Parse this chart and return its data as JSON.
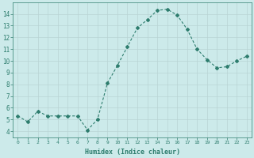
{
  "x": [
    0,
    1,
    2,
    3,
    4,
    5,
    6,
    7,
    8,
    9,
    10,
    11,
    12,
    13,
    14,
    15,
    16,
    17,
    18,
    19,
    20,
    21,
    22,
    23
  ],
  "y": [
    5.3,
    4.8,
    5.7,
    5.3,
    5.3,
    5.3,
    5.3,
    4.1,
    5.0,
    8.1,
    9.6,
    11.2,
    12.8,
    13.5,
    14.3,
    14.4,
    13.9,
    12.7,
    11.0,
    10.1,
    9.4,
    9.5,
    10.0,
    10.4
  ],
  "xlabel": "Humidex (Indice chaleur)",
  "ylim": [
    3.5,
    15.0
  ],
  "xlim": [
    -0.5,
    23.5
  ],
  "yticks": [
    4,
    5,
    6,
    7,
    8,
    9,
    10,
    11,
    12,
    13,
    14
  ],
  "xticks": [
    0,
    1,
    2,
    3,
    4,
    5,
    6,
    7,
    8,
    9,
    10,
    11,
    12,
    13,
    14,
    15,
    16,
    17,
    18,
    19,
    20,
    21,
    22,
    23
  ],
  "line_color": "#2e7d6e",
  "marker": "D",
  "marker_size": 2.0,
  "bg_color": "#cceaea",
  "grid_color": "#b8d4d4",
  "font_color": "#2e7d6e"
}
